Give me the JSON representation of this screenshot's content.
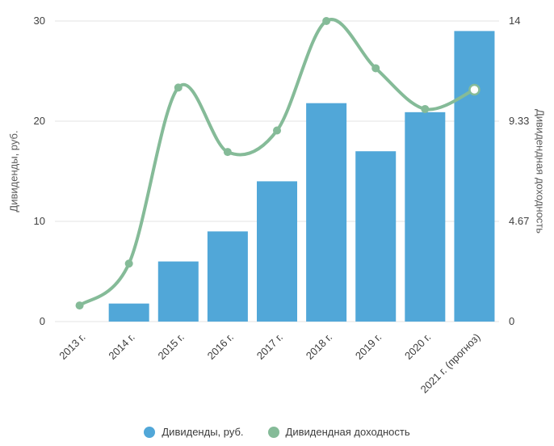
{
  "chart_data": {
    "type": "combo",
    "title": "",
    "categories": [
      "2013 г.",
      "2014 г.",
      "2015 г.",
      "2016 г.",
      "2017 г.",
      "2018 г.",
      "2019 г.",
      "2020 г.",
      "2021 г. (прогноз)"
    ],
    "series": [
      {
        "name": "Дивиденды, руб.",
        "type": "bar",
        "axis": "left",
        "color": "#51a7d8",
        "values": [
          0,
          1.8,
          6,
          9,
          14,
          21.8,
          17,
          20.9,
          29
        ]
      },
      {
        "name": "Дивидендная доходность",
        "type": "line",
        "axis": "right",
        "color": "#85bb98",
        "values": [
          0.75,
          2.7,
          10.9,
          7.9,
          8.9,
          14,
          11.8,
          9.9,
          10.8
        ],
        "last_point_hollow": true
      }
    ],
    "left_axis": {
      "label": "Дивиденды, руб.",
      "min": 0,
      "max": 30,
      "ticks": [
        "0",
        "10",
        "20",
        "30"
      ]
    },
    "right_axis": {
      "label": "Дивидендная доходность",
      "min": 0,
      "max": 14,
      "ticks": [
        "0",
        "4.67",
        "9.33",
        "14"
      ]
    },
    "grid": true,
    "legend_position": "bottom"
  },
  "legend": {
    "items": [
      {
        "label": "Дивиденды, руб.",
        "color": "#51a7d8"
      },
      {
        "label": "Дивидендная доходность",
        "color": "#85bb98"
      }
    ]
  },
  "colors": {
    "gridline": "#e3e3e3",
    "tick_text": "#404040",
    "axis_title_text": "#5a5a5a"
  }
}
